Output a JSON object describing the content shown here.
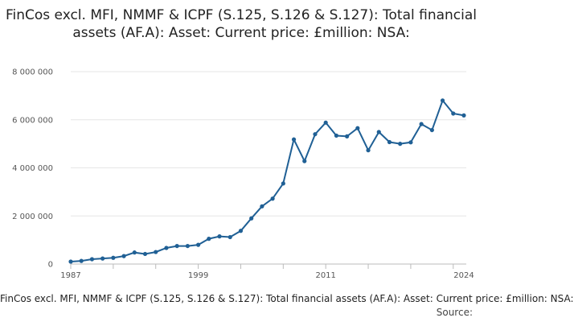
{
  "chart_data": {
    "type": "line",
    "title": "FinCos excl. MFI, NMMF & ICPF (S.125, S.126 & S.127): Total financial assets (AF.A): Asset: Current price: £million: NSA:",
    "xlabel": "",
    "ylabel": "",
    "x": [
      1987,
      1988,
      1989,
      1990,
      1991,
      1992,
      1993,
      1994,
      1995,
      1996,
      1997,
      1998,
      1999,
      2000,
      2001,
      2002,
      2003,
      2004,
      2005,
      2006,
      2007,
      2008,
      2009,
      2010,
      2011,
      2012,
      2013,
      2014,
      2015,
      2016,
      2017,
      2018,
      2019,
      2020,
      2021,
      2022,
      2023,
      2024
    ],
    "x_ticks": [
      "1987",
      "1999",
      "2011",
      "2024"
    ],
    "y_ticks": [
      "0",
      "2 000 000",
      "4 000 000",
      "6 000 000",
      "8 000 000"
    ],
    "ylim": [
      0,
      8000000
    ],
    "xlim": [
      1987,
      2024
    ],
    "grid": true,
    "legend_position": "bottom",
    "series": [
      {
        "name": "FinCos excl. MFI, NMMF & ICPF (S.125, S.126 & S.127): Total financial assets (AF.A): Asset: Current price: £million: NSA:",
        "color": "#206095",
        "values": [
          100000,
          130000,
          200000,
          230000,
          260000,
          330000,
          480000,
          420000,
          500000,
          670000,
          750000,
          750000,
          800000,
          1050000,
          1150000,
          1120000,
          1380000,
          1900000,
          2400000,
          2720000,
          3350000,
          5180000,
          4280000,
          5400000,
          5880000,
          5340000,
          5310000,
          5650000,
          4730000,
          5490000,
          5070000,
          5000000,
          5060000,
          5820000,
          5570000,
          6800000,
          6260000,
          6180000
        ]
      }
    ]
  },
  "legend": {
    "text": "FinCos excl. MFI, NMMF & ICPF (S.125, S.126 & S.127): Total financial assets (AF.A): Asset: Current price: £million: NSA:"
  },
  "source": {
    "label": "Source:"
  }
}
